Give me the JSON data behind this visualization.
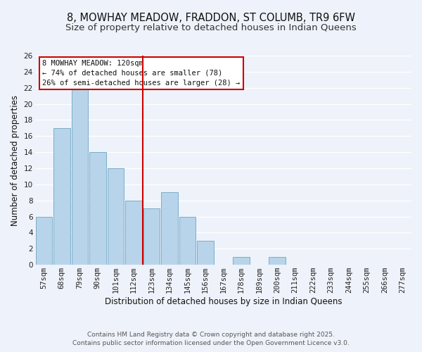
{
  "title": "8, MOWHAY MEADOW, FRADDON, ST COLUMB, TR9 6FW",
  "subtitle": "Size of property relative to detached houses in Indian Queens",
  "bar_labels": [
    "57sqm",
    "68sqm",
    "79sqm",
    "90sqm",
    "101sqm",
    "112sqm",
    "123sqm",
    "134sqm",
    "145sqm",
    "156sqm",
    "167sqm",
    "178sqm",
    "189sqm",
    "200sqm",
    "211sqm",
    "222sqm",
    "233sqm",
    "244sqm",
    "255sqm",
    "266sqm",
    "277sqm"
  ],
  "bar_values": [
    6,
    17,
    22,
    14,
    12,
    8,
    7,
    9,
    6,
    3,
    0,
    1,
    0,
    1,
    0,
    0,
    0,
    0,
    0,
    0,
    0
  ],
  "bar_color": "#b8d4ea",
  "bar_edge_color": "#7aaec8",
  "vline_x_index": 6,
  "vline_color": "#cc0000",
  "xlabel": "Distribution of detached houses by size in Indian Queens",
  "ylabel": "Number of detached properties",
  "ylim": [
    0,
    26
  ],
  "yticks": [
    0,
    2,
    4,
    6,
    8,
    10,
    12,
    14,
    16,
    18,
    20,
    22,
    24,
    26
  ],
  "annotation_title": "8 MOWHAY MEADOW: 120sqm",
  "annotation_line1": "← 74% of detached houses are smaller (78)",
  "annotation_line2": "26% of semi-detached houses are larger (28) →",
  "annotation_box_facecolor": "#ffffff",
  "annotation_box_edgecolor": "#cc0000",
  "footer_line1": "Contains HM Land Registry data © Crown copyright and database right 2025.",
  "footer_line2": "Contains public sector information licensed under the Open Government Licence v3.0.",
  "background_color": "#eef2fa",
  "grid_color": "#ffffff",
  "title_fontsize": 10.5,
  "subtitle_fontsize": 9.5,
  "axis_label_fontsize": 8.5,
  "tick_fontsize": 7.5,
  "annotation_fontsize": 7.5,
  "footer_fontsize": 6.5
}
